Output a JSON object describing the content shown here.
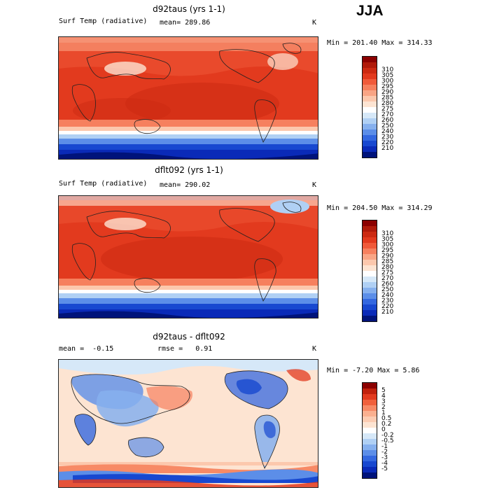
{
  "season": "JJA",
  "panels": [
    {
      "title": "d92taus (yrs 1-1)",
      "variable": "Surf Temp (radiative)",
      "mean_label": "mean=",
      "mean_value": "289.86",
      "units": "K",
      "minmax": "Min = 201.40 Max = 314.33",
      "colors": [
        "#8b0000",
        "#b01a0a",
        "#cc2a12",
        "#e23a1e",
        "#f05a3a",
        "#f6805e",
        "#f9a585",
        "#fcc8ad",
        "#fde4d2",
        "#ffffff",
        "#d6e8f8",
        "#b0d0f4",
        "#86b0ee",
        "#5c8ee8",
        "#3468e0",
        "#1848d0",
        "#0a2ab8",
        "#00137a"
      ],
      "ticks": [
        "310",
        "305",
        "300",
        "295",
        "290",
        "285",
        "280",
        "275",
        "270",
        "260",
        "250",
        "240",
        "230",
        "220",
        "210"
      ]
    },
    {
      "title": "dflt092 (yrs 1-1)",
      "variable": "Surf Temp (radiative)",
      "mean_label": "mean=",
      "mean_value": "290.02",
      "units": "K",
      "minmax": "Min = 204.50 Max = 314.29",
      "colors": [
        "#8b0000",
        "#b01a0a",
        "#cc2a12",
        "#e23a1e",
        "#f05a3a",
        "#f6805e",
        "#f9a585",
        "#fcc8ad",
        "#fde4d2",
        "#ffffff",
        "#d6e8f8",
        "#b0d0f4",
        "#86b0ee",
        "#5c8ee8",
        "#3468e0",
        "#1848d0",
        "#0a2ab8",
        "#00137a"
      ],
      "ticks": [
        "310",
        "305",
        "300",
        "295",
        "290",
        "285",
        "280",
        "275",
        "270",
        "260",
        "250",
        "240",
        "230",
        "220",
        "210"
      ]
    },
    {
      "title": "d92taus - dflt092",
      "variable": "",
      "mean_label": "mean =",
      "mean_value": "-0.15",
      "rmse_label": "rmse =",
      "rmse_value": "0.91",
      "units": "K",
      "minmax": "Min = -7.20 Max =  5.86",
      "colors": [
        "#8b0000",
        "#c0200c",
        "#e23a1e",
        "#f0603c",
        "#f78a66",
        "#fab090",
        "#fcccb2",
        "#fde4d2",
        "#ffffff",
        "#d6e8f8",
        "#b0d0f4",
        "#86b0ee",
        "#5c8ee8",
        "#3468e0",
        "#1848d0",
        "#0a2ab8",
        "#00137a"
      ],
      "ticks": [
        "5",
        "4",
        "3",
        "2",
        "1",
        "0.5",
        "0.2",
        "0",
        "-0.2",
        "-0.5",
        "-1",
        "-2",
        "-3",
        "-4",
        "-5"
      ]
    }
  ]
}
